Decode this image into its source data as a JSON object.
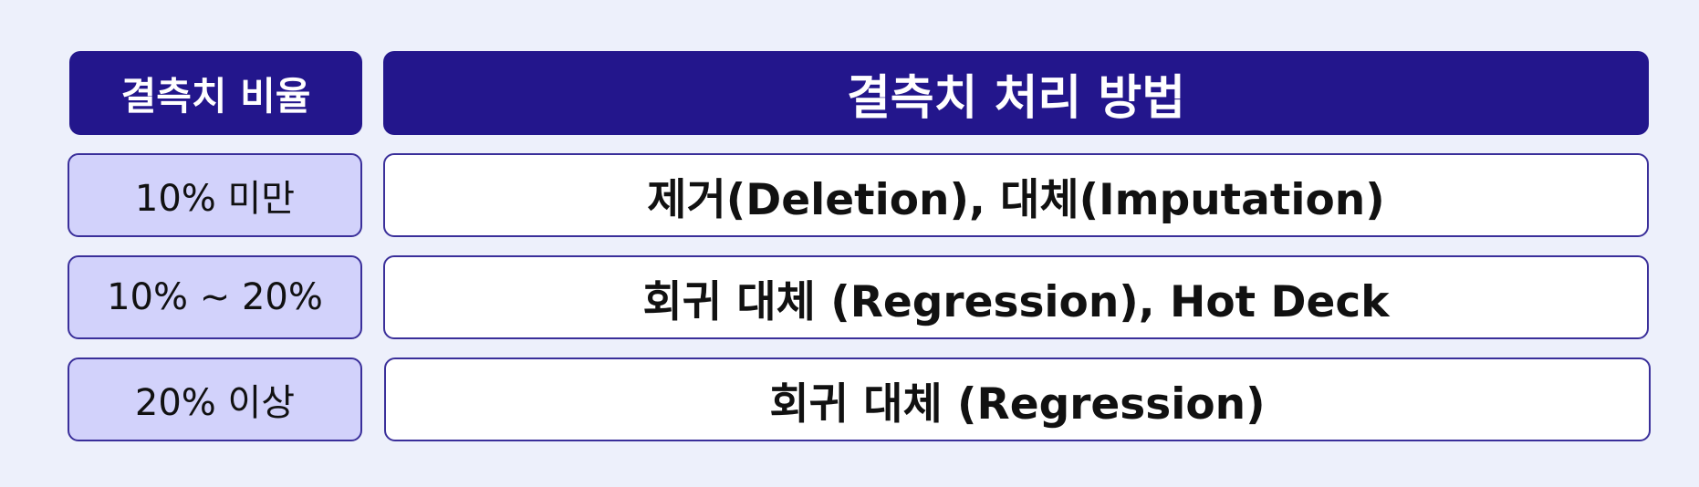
{
  "header": {
    "ratio_label": "결측치 비율",
    "method_label": "결측치 처리 방법"
  },
  "rows": [
    {
      "ratio": "10% 미만",
      "method": "제거(Deletion), 대체(Imputation)"
    },
    {
      "ratio": "10% ~ 20%",
      "method": "회귀 대체 (Regression), Hot Deck"
    },
    {
      "ratio": "20% 이상",
      "method": "회귀 대체 (Regression)"
    }
  ],
  "colors": {
    "background": "#edf0fb",
    "header_fill": "#23168c",
    "ratio_fill": "#d2d2fb",
    "method_fill": "#ffffff",
    "border": "#3a2f9a"
  }
}
